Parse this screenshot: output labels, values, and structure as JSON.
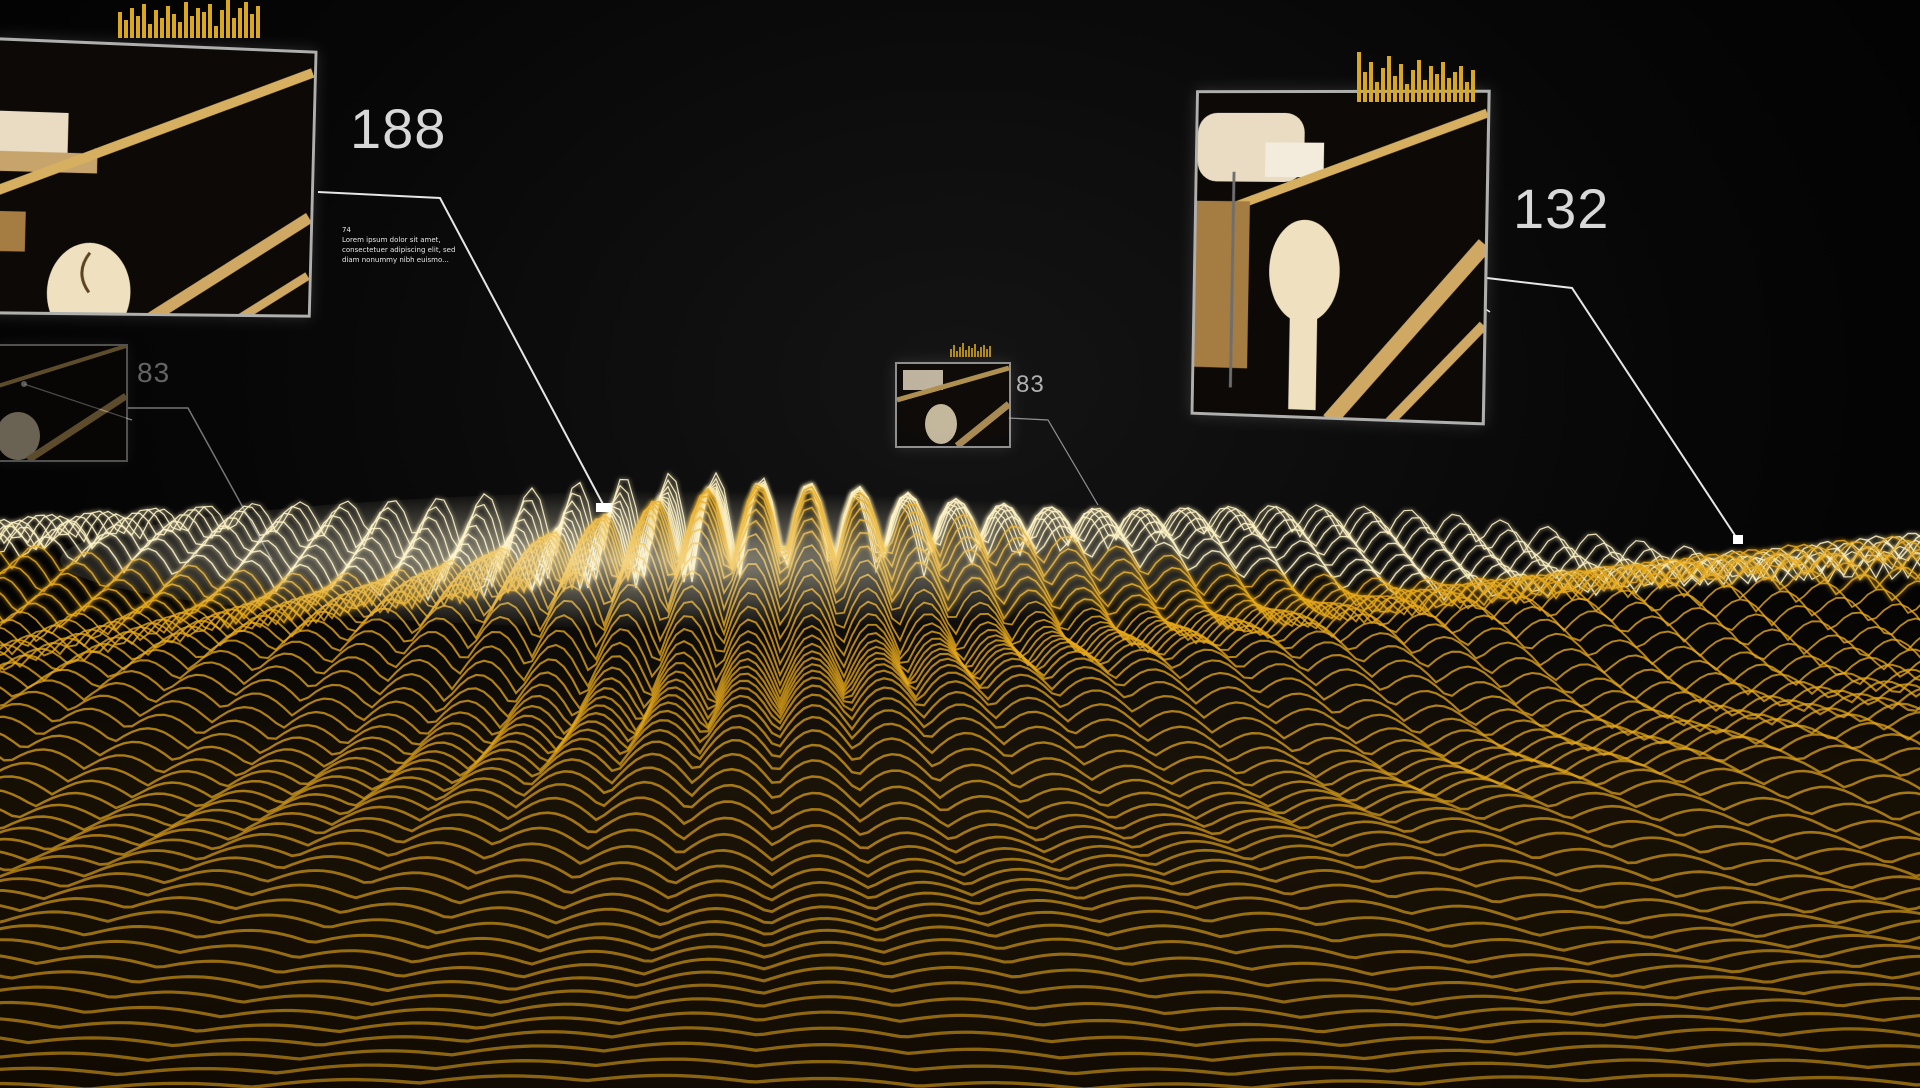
{
  "panels": [
    {
      "id": "left-large",
      "value": "188",
      "caption": "74\nLorem ipsum dolor sit amet,\nconsectetuer adipiscing elit, sed\ndiam nonummy nibh euismo..."
    },
    {
      "id": "right-large",
      "value": "132"
    },
    {
      "id": "left-small",
      "value": "83"
    },
    {
      "id": "center-small",
      "value": "83"
    }
  ],
  "colors": {
    "wave": "#e8a91c",
    "wave_highlight": "#fff3c4",
    "panel_border": "#cdcdcd",
    "bars": "#d9a81e"
  },
  "icons": {
    "connector": "leader-line",
    "marker": "square-marker"
  }
}
